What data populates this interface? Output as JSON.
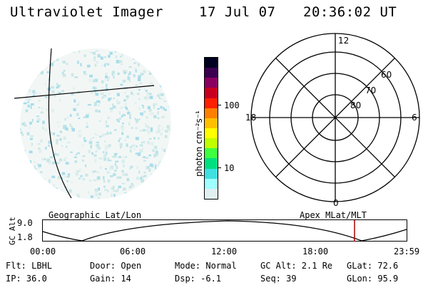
{
  "header": {
    "title": "Ultraviolet Imager",
    "date": "17 Jul 07",
    "time": "20:36:02 UT"
  },
  "image_panel": {
    "left_caption": "Geographic Lat/Lon",
    "right_caption": "Apex MLat/MLT"
  },
  "colorbar": {
    "unit_label": "photon cm⁻²s⁻¹",
    "ticks": [
      "100",
      "10"
    ],
    "colors": [
      "#000020",
      "#3a0050",
      "#8a0060",
      "#c80020",
      "#ff2000",
      "#ff8000",
      "#ffc000",
      "#ffff00",
      "#c0ff00",
      "#40ff40",
      "#00e080",
      "#40e0e0",
      "#a0ffff",
      "#e0f0f0"
    ]
  },
  "polar": {
    "mlt_labels": {
      "top": "12",
      "bottom": "0",
      "left": "18",
      "right": "6"
    },
    "lat_labels": [
      "60",
      "70",
      "80"
    ]
  },
  "altitude_plot": {
    "ylabel": "GC Alt",
    "yticks": [
      "9.0",
      "1.8"
    ],
    "xticks": [
      "00:00",
      "06:00",
      "12:00",
      "18:00",
      "23:59"
    ],
    "marker_color": "#b00000"
  },
  "footer": {
    "flt": "Flt: LBHL",
    "door": "Door: Open",
    "mode": "Mode: Normal",
    "gc_alt": "GC Alt: 2.1 Re",
    "glat": "GLat:  72.6",
    "ip": "IP: 36.0",
    "gain": "Gain: 14",
    "dsp": "Dsp:   -6.1",
    "seq": "Seq: 39",
    "glon": "GLon:  95.9"
  }
}
